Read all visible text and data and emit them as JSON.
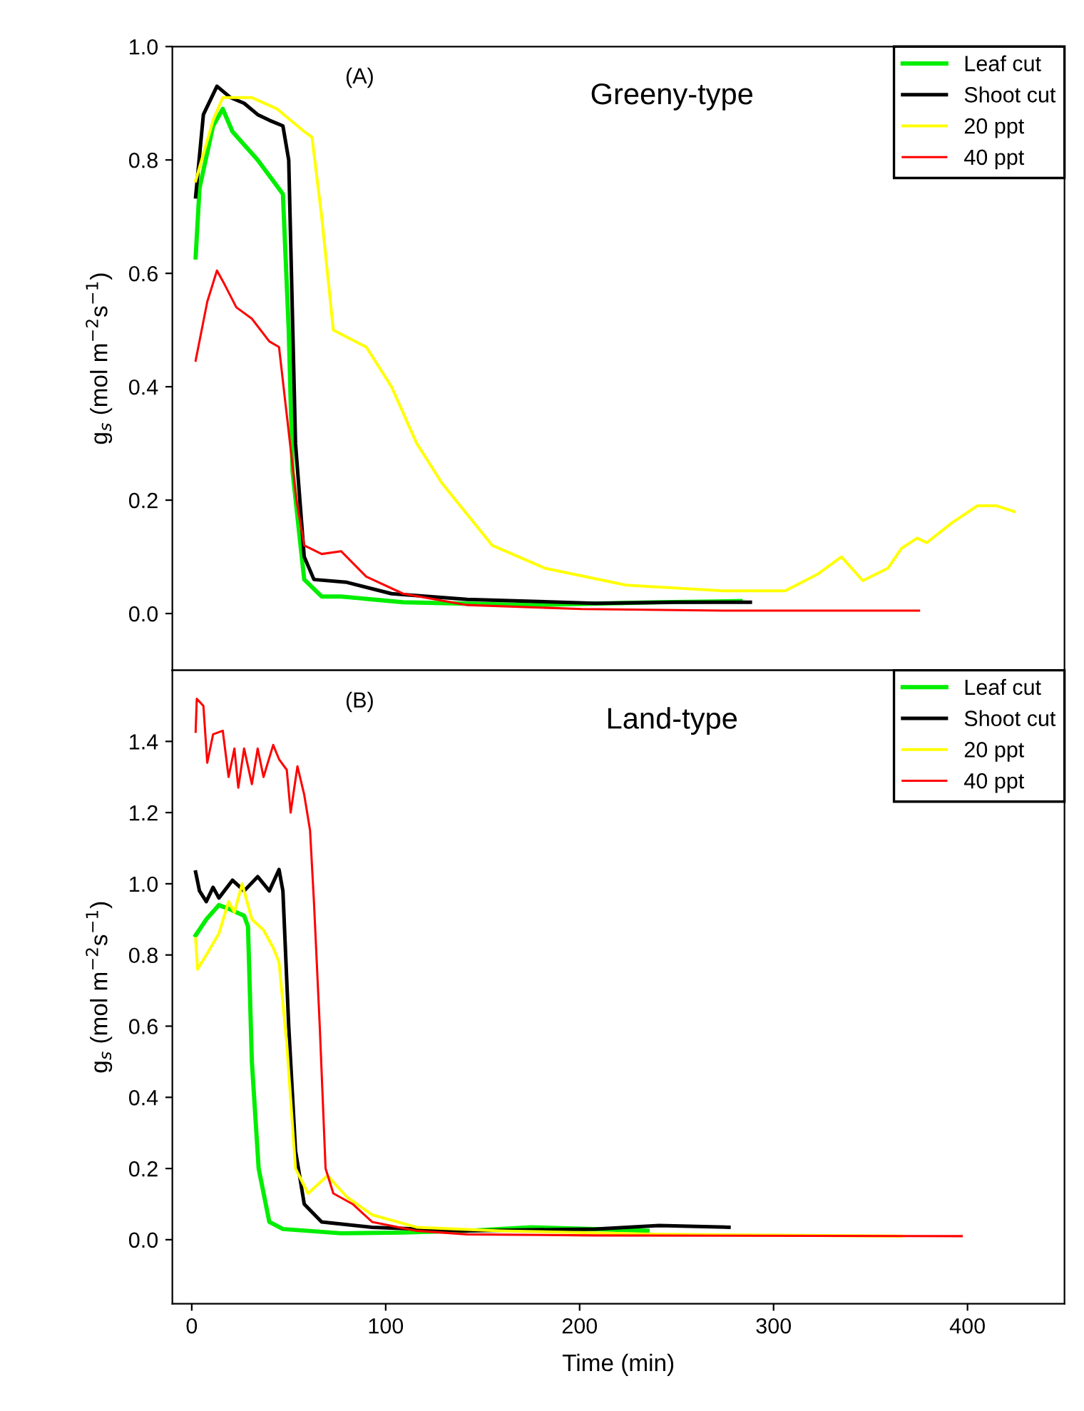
{
  "chart_data": [
    {
      "type": "line",
      "ylabel": "g$_{s}$ (mol m$^{−2}$s$^{−1}$)",
      "annotations": [
        "(A)",
        "Greeny-type"
      ],
      "xlim": [
        -10,
        450
      ],
      "ylim": [
        -0.1,
        1.0
      ],
      "yticks": [
        {
          "value": 0,
          "label": "0.0"
        },
        {
          "value": 0.2,
          "label": "0.2"
        },
        {
          "value": 0.4,
          "label": "0.4"
        },
        {
          "value": 0.6,
          "label": "0.6"
        },
        {
          "value": 0.8,
          "label": "0.8"
        },
        {
          "value": 1.0,
          "label": "1.0"
        }
      ],
      "tick_labels": "y",
      "legend": "top right",
      "grid": false,
      "marker": "none",
      "line_style": "solid",
      "series": [
        {
          "name": "Leaf cut",
          "color": "#00ee00",
          "x": [
            2,
            4,
            11,
            16,
            21,
            34,
            47,
            50,
            52,
            58,
            67,
            77,
            109,
            175,
            241,
            283
          ],
          "values": [
            0.628,
            0.75,
            0.86,
            0.89,
            0.85,
            0.8,
            0.74,
            0.5,
            0.25,
            0.06,
            0.03,
            0.03,
            0.02,
            0.015,
            0.02,
            0.022
          ]
        },
        {
          "name": "Shoot cut",
          "color": "#000000",
          "x": [
            2,
            6,
            13,
            20,
            27,
            34,
            40,
            47,
            50,
            53.5,
            58,
            63,
            80,
            103,
            142,
            208,
            250,
            288
          ],
          "values": [
            0.735,
            0.88,
            0.93,
            0.91,
            0.9,
            0.88,
            0.87,
            0.86,
            0.8,
            0.3,
            0.1,
            0.06,
            0.055,
            0.035,
            0.025,
            0.018,
            0.02,
            0.02
          ]
        },
        {
          "name": "20 ppt",
          "color": "#ffff00",
          "x": [
            2,
            11,
            16,
            31,
            44,
            58,
            62,
            67,
            73,
            90,
            103,
            116,
            129,
            155,
            182,
            224,
            274,
            306,
            323,
            335,
            346,
            359,
            366,
            374,
            379,
            392,
            405,
            415,
            424
          ],
          "values": [
            0.763,
            0.87,
            0.91,
            0.91,
            0.89,
            0.85,
            0.84,
            0.7,
            0.5,
            0.47,
            0.4,
            0.3,
            0.23,
            0.12,
            0.08,
            0.05,
            0.04,
            0.04,
            0.07,
            0.1,
            0.058,
            0.08,
            0.115,
            0.133,
            0.125,
            0.16,
            0.19,
            0.19,
            0.18
          ]
        },
        {
          "name": "40 ppt",
          "color": "#ff0000",
          "x": [
            2,
            8,
            13,
            17,
            23,
            31,
            40,
            45,
            49,
            54,
            58,
            67,
            77,
            90,
            109,
            142,
            201,
            274,
            375
          ],
          "values": [
            0.446,
            0.55,
            0.605,
            0.58,
            0.54,
            0.52,
            0.48,
            0.47,
            0.35,
            0.2,
            0.12,
            0.105,
            0.11,
            0.065,
            0.035,
            0.015,
            0.008,
            0.005,
            0.005
          ]
        }
      ]
    },
    {
      "type": "line",
      "ylabel": "g$_{s}$ (mol m$^{−2}$s$^{−1}$)",
      "xlabel": "Time (min)",
      "annotations": [
        "(B)",
        "Land-type"
      ],
      "xlim": [
        -10,
        450
      ],
      "ylim": [
        -0.18,
        1.6
      ],
      "xticks": [
        0,
        100,
        200,
        300,
        400
      ],
      "yticks": [
        {
          "value": 0,
          "label": "0.0"
        },
        {
          "value": 0.2,
          "label": "0.2"
        },
        {
          "value": 0.4,
          "label": "0.4"
        },
        {
          "value": 0.6,
          "label": "0.6"
        },
        {
          "value": 0.8,
          "label": "0.8"
        },
        {
          "value": 1.0,
          "label": "1.0"
        },
        {
          "value": 1.2,
          "label": "1.2"
        },
        {
          "value": 1.4,
          "label": "1.4"
        }
      ],
      "legend": "top right",
      "grid": false,
      "marker": "none",
      "line_style": "solid",
      "series": [
        {
          "name": "Leaf cut",
          "color": "#00ee00",
          "x": [
            2,
            7.5,
            14,
            19,
            27,
            29,
            31,
            34.5,
            40,
            47,
            77,
            109,
            142,
            175,
            208,
            235
          ],
          "values": [
            0.855,
            0.9,
            0.94,
            0.93,
            0.91,
            0.88,
            0.5,
            0.2,
            0.05,
            0.03,
            0.018,
            0.02,
            0.025,
            0.035,
            0.03,
            0.025
          ]
        },
        {
          "name": "Shoot cut",
          "color": "#000000",
          "x": [
            2,
            4,
            7.5,
            11,
            14,
            21,
            27,
            34,
            40,
            45,
            47,
            50,
            53.5,
            58,
            67,
            93,
            142,
            208,
            241,
            277
          ],
          "values": [
            1.033,
            0.98,
            0.95,
            0.99,
            0.96,
            1.01,
            0.98,
            1.02,
            0.98,
            1.04,
            0.98,
            0.6,
            0.25,
            0.1,
            0.05,
            0.035,
            0.025,
            0.03,
            0.04,
            0.035
          ]
        },
        {
          "name": "20 ppt",
          "color": "#ffff00",
          "x": [
            2,
            3,
            7.5,
            14,
            19,
            22,
            26,
            31,
            37,
            42,
            45,
            49,
            53.5,
            60,
            70,
            80,
            93,
            116,
            159,
            241,
            366
          ],
          "values": [
            0.846,
            0.76,
            0.8,
            0.86,
            0.95,
            0.92,
            1.0,
            0.9,
            0.87,
            0.82,
            0.78,
            0.55,
            0.2,
            0.13,
            0.18,
            0.12,
            0.07,
            0.035,
            0.025,
            0.015,
            0.01
          ]
        },
        {
          "name": "40 ppt",
          "color": "#ff0000",
          "x": [
            2,
            2.6,
            6,
            8,
            11,
            16,
            19,
            22,
            24,
            27,
            31,
            34,
            37,
            42,
            45,
            49,
            51,
            54.5,
            58,
            61,
            63,
            66,
            69,
            73,
            83,
            93,
            116,
            142,
            208,
            397
          ],
          "values": [
            1.427,
            1.52,
            1.5,
            1.34,
            1.42,
            1.43,
            1.3,
            1.38,
            1.27,
            1.38,
            1.28,
            1.38,
            1.3,
            1.39,
            1.35,
            1.32,
            1.2,
            1.33,
            1.25,
            1.15,
            0.95,
            0.6,
            0.2,
            0.13,
            0.1,
            0.05,
            0.025,
            0.015,
            0.012,
            0.01
          ]
        }
      ]
    }
  ]
}
